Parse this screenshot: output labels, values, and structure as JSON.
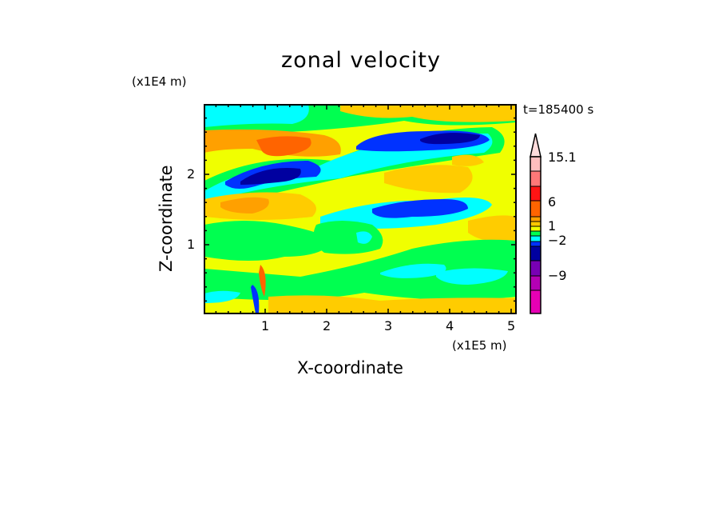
{
  "chart_data": {
    "type": "heatmap",
    "subtype": "filled-contour",
    "title": "zonal velocity",
    "xlabel": "X-coordinate",
    "ylabel": "Z-coordinate",
    "x_unit": "(x1E5 m)",
    "y_unit": "(x1E4 m)",
    "time_label": "t=185400 s",
    "xlim": [
      0,
      5.08
    ],
    "ylim": [
      0,
      2.98
    ],
    "xticks": [
      "1",
      "2",
      "3",
      "4",
      "5"
    ],
    "yticks": [
      "1",
      "2"
    ],
    "colorbar": {
      "labels": [
        "15.1",
        "6",
        "1",
        "−2",
        "−9"
      ],
      "label_values": [
        15.1,
        6,
        1,
        -2,
        -9
      ],
      "colors_top_to_bottom": [
        "#ffdcdc",
        "#ffbebe",
        "#ff7878",
        "#ff1414",
        "#ff6400",
        "#ffa000",
        "#ffc800",
        "#f0ff00",
        "#00ff50",
        "#00ffff",
        "#0032ff",
        "#0000a0",
        "#7800b4",
        "#b400b4",
        "#e600b4"
      ],
      "extend": "max"
    },
    "colors": {
      "yellow": "#f0ff00",
      "gold": "#ffcc00",
      "orange": "#ffa000",
      "darkorange": "#ff6400",
      "green": "#00ff50",
      "cyan": "#00ffff",
      "blue": "#0032ff",
      "navy": "#0000a0"
    }
  }
}
